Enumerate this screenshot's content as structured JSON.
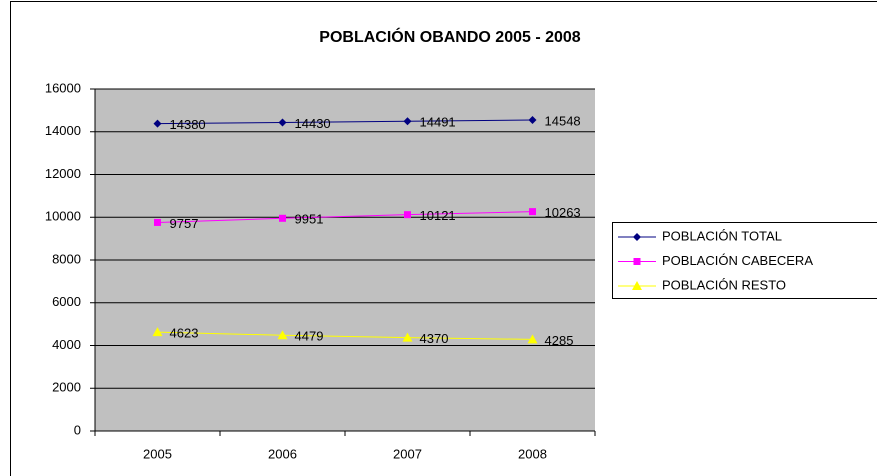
{
  "chart_data": {
    "type": "line",
    "title": "POBLACIÓN OBANDO 2005 - 2008",
    "categories": [
      "2005",
      "2006",
      "2007",
      "2008"
    ],
    "series": [
      {
        "name": "POBLACIÓN TOTAL",
        "color": "#000080",
        "marker": "diamond",
        "values": [
          14380,
          14430,
          14491,
          14548
        ]
      },
      {
        "name": "POBLACIÓN CABECERA",
        "color": "#ff00ff",
        "marker": "square",
        "values": [
          9757,
          9951,
          10121,
          10263
        ]
      },
      {
        "name": "POBLACIÓN RESTO",
        "color": "#ffff00",
        "marker": "triangle",
        "values": [
          4623,
          4479,
          4370,
          4285
        ]
      }
    ],
    "ylim": [
      0,
      16000
    ],
    "yticks": [
      0,
      2000,
      4000,
      6000,
      8000,
      10000,
      12000,
      14000,
      16000
    ],
    "grid": true,
    "legend": "right",
    "plot_background": "#c0c0c0"
  }
}
